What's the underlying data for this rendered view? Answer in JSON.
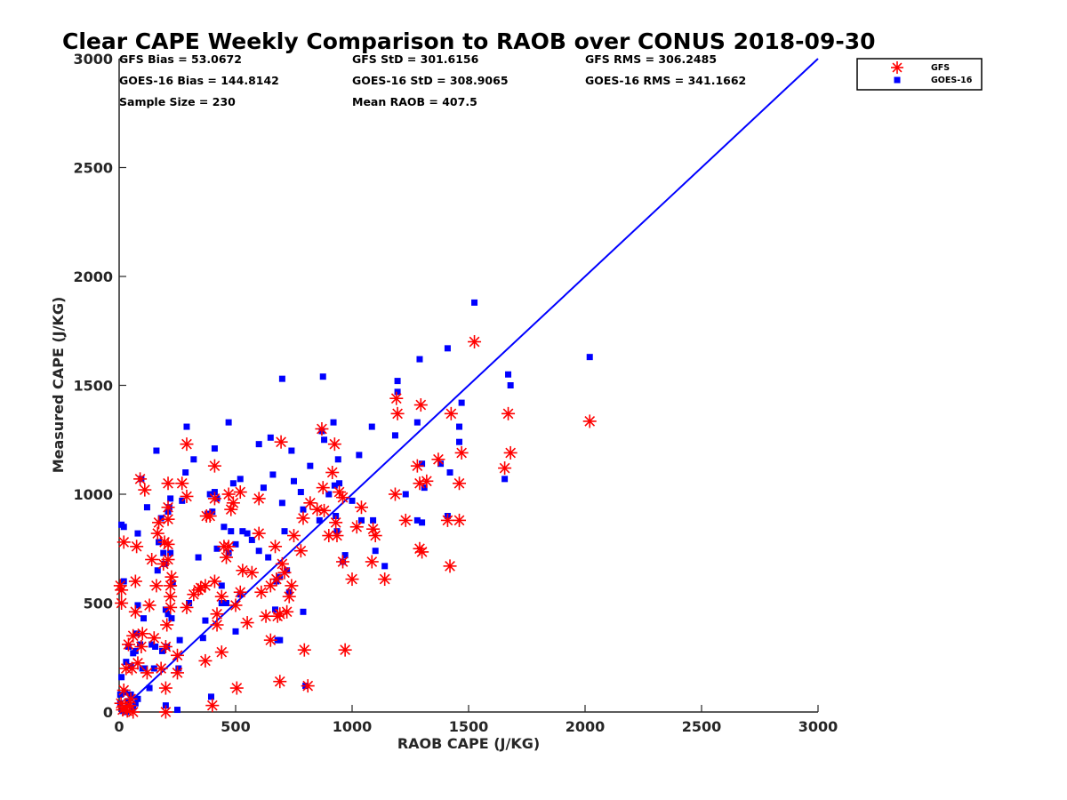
{
  "chart_data": {
    "type": "scatter",
    "title": "Clear CAPE Weekly Comparison to RAOB over CONUS 2018-09-30",
    "xlabel": "RAOB CAPE (J/KG)",
    "ylabel": "Measured CAPE (J/KG)",
    "xlim": [
      0,
      3000
    ],
    "ylim": [
      0,
      3000
    ],
    "xticks": [
      "0",
      "500",
      "1000",
      "1500",
      "2000",
      "2500",
      "3000"
    ],
    "yticks": [
      "0",
      "500",
      "1000",
      "1500",
      "2000",
      "2500",
      "3000"
    ],
    "grid": false,
    "legend_position": "top-right",
    "reference_line": {
      "type": "one-to-one",
      "color": "#0000ff"
    },
    "stats": {
      "gfs_bias": "GFS Bias = 53.0672",
      "gfs_std": "GFS StD = 301.6156",
      "gfs_rms": "GFS RMS = 306.2485",
      "goes_bias": "GOES-16 Bias = 144.8142",
      "goes_std": "GOES-16 StD = 308.9065",
      "goes_rms": "GOES-16 RMS = 341.1662",
      "sample_size": "Sample Size = 230",
      "mean_raob": "Mean RAOB = 407.5"
    },
    "series": [
      {
        "name": "GFS",
        "marker": "asterisk",
        "color": "#ff0000",
        "points": [
          [
            2020,
            1335
          ],
          [
            1525,
            1700
          ],
          [
            1680,
            1190
          ],
          [
            1670,
            1370
          ],
          [
            1655,
            1120
          ],
          [
            1470,
            1190
          ],
          [
            1460,
            1050
          ],
          [
            1460,
            880
          ],
          [
            1425,
            1370
          ],
          [
            1420,
            670
          ],
          [
            1410,
            880
          ],
          [
            1370,
            1160
          ],
          [
            1320,
            1060
          ],
          [
            1295,
            1410
          ],
          [
            1290,
            1050
          ],
          [
            1280,
            1130
          ],
          [
            1290,
            750
          ],
          [
            1300,
            735
          ],
          [
            1230,
            880
          ],
          [
            1190,
            1440
          ],
          [
            1195,
            1370
          ],
          [
            1185,
            1000
          ],
          [
            1140,
            610
          ],
          [
            1100,
            810
          ],
          [
            1090,
            840
          ],
          [
            1085,
            690
          ],
          [
            1040,
            940
          ],
          [
            1020,
            850
          ],
          [
            1000,
            610
          ],
          [
            970,
            285
          ],
          [
            960,
            690
          ],
          [
            960,
            985
          ],
          [
            945,
            1010
          ],
          [
            925,
            1230
          ],
          [
            915,
            1100
          ],
          [
            930,
            870
          ],
          [
            935,
            810
          ],
          [
            900,
            810
          ],
          [
            875,
            1030
          ],
          [
            880,
            925
          ],
          [
            870,
            1300
          ],
          [
            850,
            930
          ],
          [
            820,
            960
          ],
          [
            790,
            890
          ],
          [
            795,
            285
          ],
          [
            780,
            740
          ],
          [
            810,
            120
          ],
          [
            750,
            810
          ],
          [
            740,
            580
          ],
          [
            730,
            530
          ],
          [
            720,
            460
          ],
          [
            710,
            640
          ],
          [
            700,
            680
          ],
          [
            695,
            1240
          ],
          [
            690,
            140
          ],
          [
            690,
            450
          ],
          [
            680,
            440
          ],
          [
            675,
            610
          ],
          [
            670,
            760
          ],
          [
            650,
            580
          ],
          [
            650,
            330
          ],
          [
            630,
            440
          ],
          [
            610,
            550
          ],
          [
            600,
            980
          ],
          [
            600,
            820
          ],
          [
            570,
            640
          ],
          [
            550,
            410
          ],
          [
            530,
            650
          ],
          [
            520,
            550
          ],
          [
            520,
            1010
          ],
          [
            500,
            490
          ],
          [
            505,
            110
          ],
          [
            490,
            960
          ],
          [
            480,
            930
          ],
          [
            470,
            1000
          ],
          [
            470,
            760
          ],
          [
            460,
            710
          ],
          [
            450,
            760
          ],
          [
            440,
            275
          ],
          [
            440,
            530
          ],
          [
            420,
            450
          ],
          [
            420,
            400
          ],
          [
            410,
            1130
          ],
          [
            410,
            980
          ],
          [
            410,
            600
          ],
          [
            400,
            30
          ],
          [
            390,
            900
          ],
          [
            375,
            900
          ],
          [
            370,
            580
          ],
          [
            370,
            235
          ],
          [
            350,
            570
          ],
          [
            340,
            560
          ],
          [
            320,
            540
          ],
          [
            290,
            480
          ],
          [
            290,
            1230
          ],
          [
            290,
            990
          ],
          [
            270,
            1050
          ],
          [
            250,
            180
          ],
          [
            250,
            260
          ],
          [
            225,
            620
          ],
          [
            220,
            580
          ],
          [
            220,
            530
          ],
          [
            220,
            480
          ],
          [
            210,
            1050
          ],
          [
            210,
            940
          ],
          [
            210,
            885
          ],
          [
            210,
            770
          ],
          [
            210,
            700
          ],
          [
            205,
            400
          ],
          [
            200,
            300
          ],
          [
            200,
            110
          ],
          [
            200,
            0
          ],
          [
            195,
            780
          ],
          [
            190,
            680
          ],
          [
            180,
            200
          ],
          [
            170,
            870
          ],
          [
            165,
            820
          ],
          [
            160,
            580
          ],
          [
            150,
            340
          ],
          [
            140,
            700
          ],
          [
            130,
            490
          ],
          [
            120,
            180
          ],
          [
            110,
            1020
          ],
          [
            100,
            360
          ],
          [
            95,
            300
          ],
          [
            90,
            1070
          ],
          [
            80,
            225
          ],
          [
            75,
            760
          ],
          [
            70,
            600
          ],
          [
            70,
            460
          ],
          [
            60,
            350
          ],
          [
            55,
            200
          ],
          [
            40,
            310
          ],
          [
            30,
            200
          ],
          [
            20,
            100
          ],
          [
            20,
            780
          ],
          [
            10,
            500
          ],
          [
            10,
            560
          ],
          [
            5,
            580
          ],
          [
            8,
            40
          ],
          [
            15,
            10
          ],
          [
            25,
            20
          ],
          [
            35,
            5
          ],
          [
            45,
            30
          ],
          [
            50,
            60
          ],
          [
            60,
            0
          ]
        ]
      },
      {
        "name": "GOES-16",
        "marker": "square",
        "color": "#0000ff",
        "points": [
          [
            1525,
            1880
          ],
          [
            2020,
            1630
          ],
          [
            1670,
            1550
          ],
          [
            1680,
            1500
          ],
          [
            1655,
            1070
          ],
          [
            1470,
            1420
          ],
          [
            1460,
            1310
          ],
          [
            1460,
            1240
          ],
          [
            1410,
            1670
          ],
          [
            1420,
            1100
          ],
          [
            1410,
            900
          ],
          [
            1380,
            1140
          ],
          [
            1300,
            1140
          ],
          [
            1290,
            1620
          ],
          [
            1280,
            1330
          ],
          [
            1310,
            1030
          ],
          [
            1280,
            880
          ],
          [
            1300,
            870
          ],
          [
            1230,
            1000
          ],
          [
            1195,
            1520
          ],
          [
            1195,
            1470
          ],
          [
            1185,
            1270
          ],
          [
            1140,
            670
          ],
          [
            1100,
            740
          ],
          [
            1090,
            880
          ],
          [
            1085,
            1310
          ],
          [
            1040,
            880
          ],
          [
            1030,
            1180
          ],
          [
            1000,
            970
          ],
          [
            970,
            720
          ],
          [
            960,
            690
          ],
          [
            940,
            1160
          ],
          [
            945,
            1050
          ],
          [
            925,
            1040
          ],
          [
            920,
            1330
          ],
          [
            930,
            900
          ],
          [
            935,
            830
          ],
          [
            900,
            1000
          ],
          [
            875,
            1540
          ],
          [
            880,
            1250
          ],
          [
            870,
            1290
          ],
          [
            860,
            880
          ],
          [
            820,
            1130
          ],
          [
            790,
            930
          ],
          [
            790,
            460
          ],
          [
            780,
            1010
          ],
          [
            800,
            120
          ],
          [
            750,
            1060
          ],
          [
            740,
            1200
          ],
          [
            730,
            550
          ],
          [
            720,
            650
          ],
          [
            710,
            830
          ],
          [
            700,
            1530
          ],
          [
            700,
            960
          ],
          [
            690,
            330
          ],
          [
            690,
            620
          ],
          [
            680,
            330
          ],
          [
            675,
            600
          ],
          [
            670,
            470
          ],
          [
            660,
            1090
          ],
          [
            650,
            1260
          ],
          [
            640,
            710
          ],
          [
            620,
            1030
          ],
          [
            600,
            1230
          ],
          [
            600,
            740
          ],
          [
            570,
            790
          ],
          [
            550,
            820
          ],
          [
            530,
            830
          ],
          [
            520,
            1070
          ],
          [
            520,
            540
          ],
          [
            500,
            770
          ],
          [
            500,
            370
          ],
          [
            490,
            1050
          ],
          [
            480,
            830
          ],
          [
            470,
            1330
          ],
          [
            470,
            730
          ],
          [
            460,
            500
          ],
          [
            450,
            850
          ],
          [
            440,
            580
          ],
          [
            440,
            500
          ],
          [
            420,
            980
          ],
          [
            420,
            750
          ],
          [
            410,
            1210
          ],
          [
            410,
            1010
          ],
          [
            400,
            920
          ],
          [
            395,
            70
          ],
          [
            390,
            1000
          ],
          [
            380,
            910
          ],
          [
            370,
            420
          ],
          [
            360,
            340
          ],
          [
            340,
            710
          ],
          [
            320,
            1160
          ],
          [
            300,
            500
          ],
          [
            290,
            1310
          ],
          [
            285,
            1100
          ],
          [
            270,
            970
          ],
          [
            260,
            330
          ],
          [
            255,
            200
          ],
          [
            250,
            10
          ],
          [
            230,
            590
          ],
          [
            225,
            430
          ],
          [
            220,
            730
          ],
          [
            220,
            980
          ],
          [
            215,
            940
          ],
          [
            210,
            920
          ],
          [
            210,
            450
          ],
          [
            205,
            300
          ],
          [
            200,
            470
          ],
          [
            200,
            30
          ],
          [
            195,
            680
          ],
          [
            190,
            730
          ],
          [
            185,
            280
          ],
          [
            180,
            890
          ],
          [
            170,
            780
          ],
          [
            165,
            650
          ],
          [
            160,
            1200
          ],
          [
            155,
            300
          ],
          [
            150,
            200
          ],
          [
            140,
            310
          ],
          [
            130,
            110
          ],
          [
            120,
            940
          ],
          [
            110,
            200
          ],
          [
            105,
            430
          ],
          [
            100,
            200
          ],
          [
            95,
            1070
          ],
          [
            90,
            310
          ],
          [
            80,
            490
          ],
          [
            80,
            820
          ],
          [
            75,
            360
          ],
          [
            70,
            280
          ],
          [
            60,
            270
          ],
          [
            50,
            210
          ],
          [
            40,
            300
          ],
          [
            30,
            230
          ],
          [
            20,
            600
          ],
          [
            10,
            860
          ],
          [
            20,
            850
          ],
          [
            25,
            90
          ],
          [
            10,
            160
          ],
          [
            5,
            80
          ],
          [
            5,
            40
          ],
          [
            15,
            5
          ],
          [
            30,
            0
          ],
          [
            40,
            50
          ],
          [
            50,
            80
          ],
          [
            60,
            20
          ],
          [
            70,
            40
          ],
          [
            80,
            60
          ]
        ]
      }
    ]
  }
}
